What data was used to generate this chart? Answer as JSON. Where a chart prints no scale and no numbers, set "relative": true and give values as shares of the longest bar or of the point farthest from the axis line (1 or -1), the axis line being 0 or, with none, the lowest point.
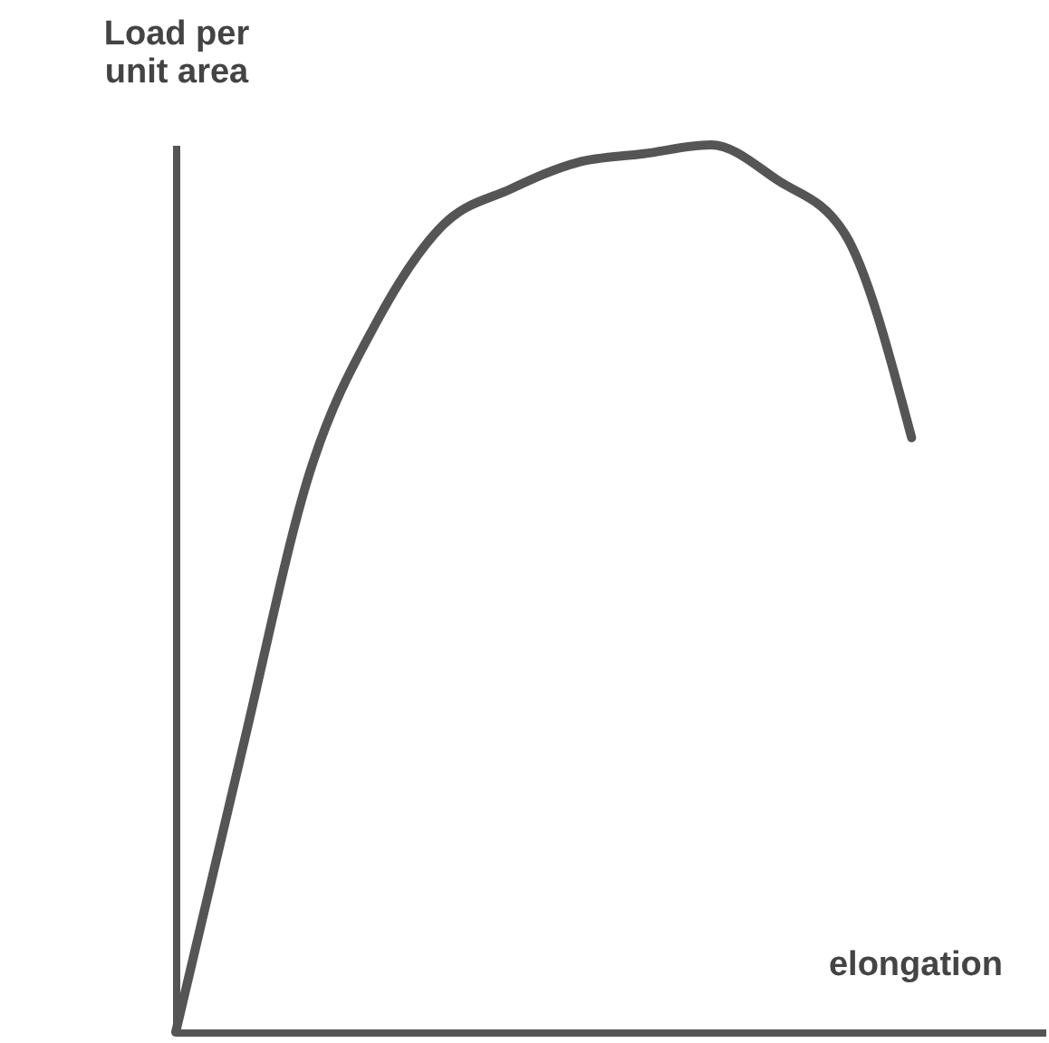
{
  "chart_data": {
    "type": "line",
    "relative": true,
    "xlabel": "elongation",
    "ylabel": "Load per unit area",
    "categories": [
      null,
      null,
      null,
      null,
      null,
      null,
      null,
      null,
      null,
      null,
      null,
      null,
      null,
      null
    ],
    "series": [
      {
        "color": "#555555",
        "values": [
          0,
          0.32,
          0.63,
          0.8,
          0.91,
          0.95,
          0.98,
          0.99,
          1.0,
          0.96,
          0.9,
          0.67,
          null,
          null
        ]
      }
    ],
    "grid": false,
    "legend": false,
    "marker": "none",
    "line_style": "solid"
  }
}
